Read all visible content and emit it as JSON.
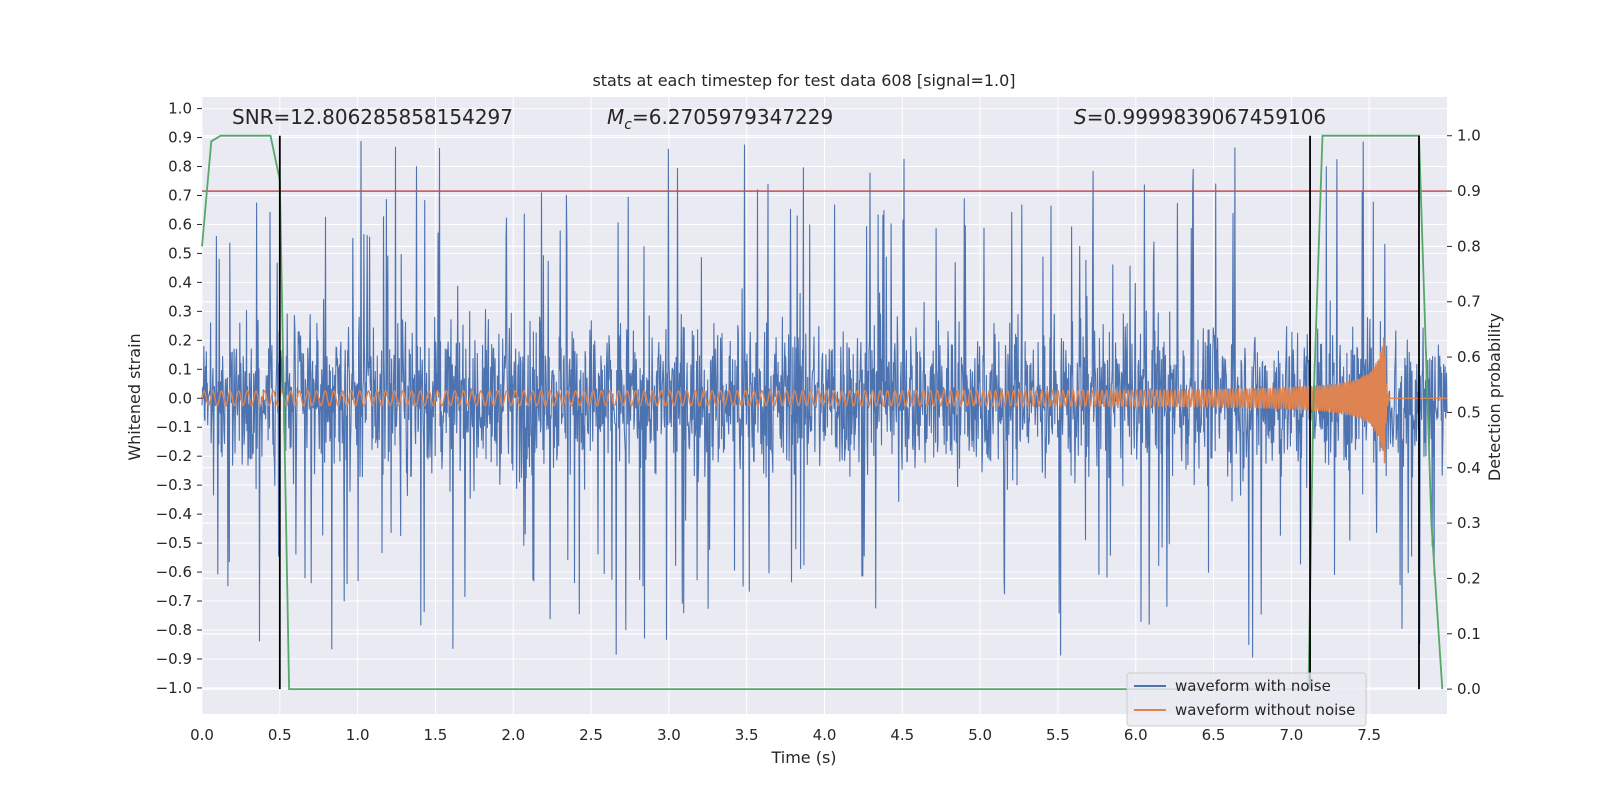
{
  "chart_data": {
    "type": "line",
    "title": "stats at each timestep for test data 608 [signal=1.0]",
    "xlabel": "Time (s)",
    "ylabel": "Whitened strain",
    "ylabel_right": "Detection probability",
    "xlim": [
      0.0,
      8.0
    ],
    "ylim": [
      -1.09,
      1.04
    ],
    "ylim_right": [
      -0.045,
      1.07
    ],
    "grid": true,
    "legend_position": "lower-right",
    "x_ticks": [
      "0.0",
      "0.5",
      "1.0",
      "1.5",
      "2.0",
      "2.5",
      "3.0",
      "3.5",
      "4.0",
      "4.5",
      "5.0",
      "5.5",
      "6.0",
      "6.5",
      "7.0",
      "7.5"
    ],
    "y_ticks": [
      "1.0",
      "0.9",
      "0.8",
      "0.7",
      "0.6",
      "0.5",
      "0.4",
      "0.3",
      "0.2",
      "0.1",
      "0.0",
      "-0.1",
      "-0.2",
      "-0.3",
      "-0.4",
      "-0.5",
      "-0.6",
      "-0.7",
      "-0.8",
      "-0.9",
      "-1.0"
    ],
    "y_ticks_right": [
      "1.0",
      "0.9",
      "0.8",
      "0.7",
      "0.6",
      "0.5",
      "0.4",
      "0.3",
      "0.2",
      "0.1",
      "0.0"
    ],
    "annotations": {
      "snr": "SNR=12.806285858154297",
      "mc_symbol": "M",
      "mc_subscript": "c",
      "mc_value": "=6.2705979347229",
      "s_symbol": "S",
      "s_value": "=0.9999839067459106"
    },
    "threshold": {
      "value": 0.9,
      "axis": "right",
      "color": "#c44e52"
    },
    "detection_markers_x": [
      0.5,
      7.12,
      7.82
    ],
    "colors": {
      "noisy": "#4c72b0",
      "clean": "#dd8452",
      "probability": "#55a868",
      "threshold": "#c44e52",
      "markers": "#000000",
      "axes_bg": "#eaeaf2",
      "grid": "#ffffff"
    },
    "series": [
      {
        "name": "waveform with noise",
        "description": "whitened strain with noise, dense noise band with spikes up to about 0.95 and down to about -1.0"
      },
      {
        "name": "waveform without noise",
        "chirp": {
          "start_freq_hz": 18,
          "end_freq_hz": 100,
          "start_amplitude": 0.025,
          "peak_amplitude": 0.24,
          "merger_time": 7.6,
          "ringdown_end": 7.63,
          "post_merger_level": 0.0
        }
      },
      {
        "name": "detection probability",
        "axis": "right",
        "x": [
          0.0,
          0.06,
          0.12,
          0.44,
          0.5,
          0.56,
          7.11,
          7.14,
          7.2,
          7.82,
          7.9,
          7.97
        ],
        "y": [
          0.8,
          0.99,
          1.0,
          1.0,
          0.92,
          0.0,
          0.0,
          0.5,
          1.0,
          1.0,
          0.3,
          0.0
        ]
      }
    ]
  }
}
